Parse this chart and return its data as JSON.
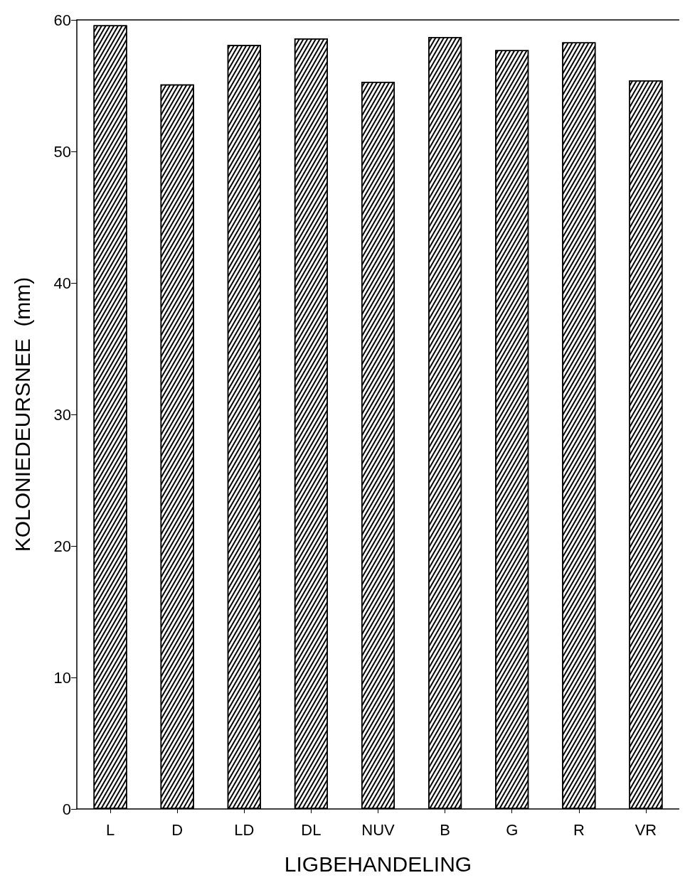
{
  "chart_data": {
    "type": "bar",
    "xlabel": "LIGBEHANDELING",
    "ylabel": "KOLONIEDEURSNEE  (mm)",
    "categories": [
      "L",
      "D",
      "LD",
      "DL",
      "NUV",
      "B",
      "G",
      "R",
      "VR"
    ],
    "values": [
      59.6,
      55.1,
      58.1,
      58.6,
      55.3,
      58.7,
      57.7,
      58.3,
      55.4
    ],
    "color": "#000000",
    "ylim": [
      0,
      60
    ],
    "yticks": [
      0,
      10,
      20,
      30,
      40,
      50,
      60
    ],
    "grid": false
  }
}
